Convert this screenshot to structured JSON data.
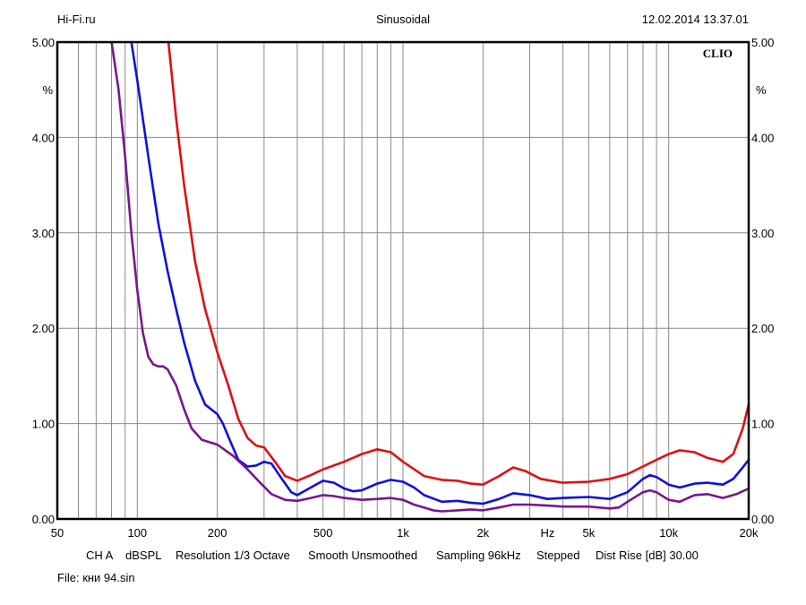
{
  "header": {
    "left": "Hi-Fi.ru",
    "center": "Sinusoidal",
    "right": "12.02.2014 13.37.01"
  },
  "footer": {
    "channel": "CH A",
    "units": "dBSPL",
    "resolution": "Resolution 1/3 Octave",
    "smooth": "Smooth Unsmoothed",
    "sampling": "Sampling 96kHz",
    "stepped": "Stepped",
    "dist_rise": "Dist Rise [dB] 30.00"
  },
  "file": {
    "label": "File:",
    "name": "кни 94.sin"
  },
  "chart_data": {
    "type": "line",
    "brand": "CLIO",
    "x_scale": "log",
    "xlim": [
      50,
      20000
    ],
    "ylim": [
      0,
      5
    ],
    "grid": true,
    "y_unit": "%",
    "y_ticks": [
      "0.00",
      "1.00",
      "2.00",
      "3.00",
      "4.00",
      "5.00"
    ],
    "x_ticks": [
      {
        "value": 50,
        "label": "50"
      },
      {
        "value": 100,
        "label": "100"
      },
      {
        "value": 200,
        "label": "200"
      },
      {
        "value": 500,
        "label": "500"
      },
      {
        "value": 1000,
        "label": "1k"
      },
      {
        "value": 2000,
        "label": "2k"
      },
      {
        "value": 5000,
        "label": "5k"
      },
      {
        "value": 10000,
        "label": "10k"
      },
      {
        "value": 20000,
        "label": "20k"
      }
    ],
    "x_unit_label": "Hz",
    "series": [
      {
        "color": "#e01010",
        "points": [
          [
            131,
            5.0
          ],
          [
            140,
            4.2
          ],
          [
            150,
            3.5
          ],
          [
            165,
            2.7
          ],
          [
            180,
            2.2
          ],
          [
            200,
            1.75
          ],
          [
            220,
            1.4
          ],
          [
            240,
            1.05
          ],
          [
            260,
            0.85
          ],
          [
            280,
            0.77
          ],
          [
            300,
            0.75
          ],
          [
            330,
            0.6
          ],
          [
            360,
            0.45
          ],
          [
            400,
            0.4
          ],
          [
            450,
            0.46
          ],
          [
            500,
            0.52
          ],
          [
            600,
            0.6
          ],
          [
            700,
            0.68
          ],
          [
            800,
            0.73
          ],
          [
            900,
            0.7
          ],
          [
            1000,
            0.6
          ],
          [
            1200,
            0.45
          ],
          [
            1400,
            0.41
          ],
          [
            1600,
            0.4
          ],
          [
            1800,
            0.37
          ],
          [
            2000,
            0.36
          ],
          [
            2300,
            0.45
          ],
          [
            2600,
            0.54
          ],
          [
            2900,
            0.5
          ],
          [
            3300,
            0.42
          ],
          [
            4000,
            0.38
          ],
          [
            5000,
            0.39
          ],
          [
            6000,
            0.42
          ],
          [
            7000,
            0.47
          ],
          [
            8000,
            0.55
          ],
          [
            9000,
            0.62
          ],
          [
            10000,
            0.68
          ],
          [
            11000,
            0.72
          ],
          [
            12500,
            0.7
          ],
          [
            14000,
            0.64
          ],
          [
            16000,
            0.6
          ],
          [
            17500,
            0.68
          ],
          [
            19000,
            0.95
          ],
          [
            20000,
            1.2
          ]
        ]
      },
      {
        "color": "#1010e0",
        "points": [
          [
            95,
            5.0
          ],
          [
            100,
            4.6
          ],
          [
            110,
            3.8
          ],
          [
            120,
            3.1
          ],
          [
            130,
            2.6
          ],
          [
            140,
            2.2
          ],
          [
            150,
            1.85
          ],
          [
            165,
            1.45
          ],
          [
            180,
            1.2
          ],
          [
            200,
            1.1
          ],
          [
            210,
            1.0
          ],
          [
            225,
            0.8
          ],
          [
            240,
            0.62
          ],
          [
            260,
            0.55
          ],
          [
            280,
            0.56
          ],
          [
            300,
            0.6
          ],
          [
            320,
            0.58
          ],
          [
            350,
            0.42
          ],
          [
            380,
            0.28
          ],
          [
            400,
            0.25
          ],
          [
            450,
            0.33
          ],
          [
            500,
            0.4
          ],
          [
            550,
            0.38
          ],
          [
            600,
            0.32
          ],
          [
            650,
            0.29
          ],
          [
            700,
            0.3
          ],
          [
            800,
            0.37
          ],
          [
            900,
            0.41
          ],
          [
            1000,
            0.39
          ],
          [
            1100,
            0.33
          ],
          [
            1200,
            0.25
          ],
          [
            1400,
            0.18
          ],
          [
            1600,
            0.19
          ],
          [
            1800,
            0.17
          ],
          [
            2000,
            0.16
          ],
          [
            2300,
            0.21
          ],
          [
            2600,
            0.27
          ],
          [
            3000,
            0.25
          ],
          [
            3500,
            0.21
          ],
          [
            4000,
            0.22
          ],
          [
            5000,
            0.23
          ],
          [
            6000,
            0.21
          ],
          [
            7000,
            0.28
          ],
          [
            8000,
            0.42
          ],
          [
            8500,
            0.46
          ],
          [
            9000,
            0.44
          ],
          [
            10000,
            0.36
          ],
          [
            11000,
            0.33
          ],
          [
            12500,
            0.37
          ],
          [
            14000,
            0.38
          ],
          [
            16000,
            0.36
          ],
          [
            17500,
            0.42
          ],
          [
            19000,
            0.54
          ],
          [
            20000,
            0.62
          ]
        ]
      },
      {
        "color": "#7a1590",
        "points": [
          [
            80,
            5.0
          ],
          [
            85,
            4.5
          ],
          [
            90,
            3.8
          ],
          [
            95,
            3.0
          ],
          [
            100,
            2.4
          ],
          [
            105,
            1.95
          ],
          [
            110,
            1.7
          ],
          [
            115,
            1.62
          ],
          [
            120,
            1.6
          ],
          [
            125,
            1.6
          ],
          [
            130,
            1.57
          ],
          [
            140,
            1.4
          ],
          [
            150,
            1.15
          ],
          [
            160,
            0.95
          ],
          [
            175,
            0.83
          ],
          [
            200,
            0.78
          ],
          [
            230,
            0.66
          ],
          [
            260,
            0.52
          ],
          [
            290,
            0.38
          ],
          [
            320,
            0.26
          ],
          [
            360,
            0.2
          ],
          [
            400,
            0.19
          ],
          [
            450,
            0.22
          ],
          [
            500,
            0.25
          ],
          [
            550,
            0.24
          ],
          [
            600,
            0.22
          ],
          [
            700,
            0.2
          ],
          [
            800,
            0.21
          ],
          [
            900,
            0.22
          ],
          [
            1000,
            0.2
          ],
          [
            1100,
            0.15
          ],
          [
            1200,
            0.12
          ],
          [
            1300,
            0.09
          ],
          [
            1400,
            0.08
          ],
          [
            1600,
            0.09
          ],
          [
            1800,
            0.1
          ],
          [
            2000,
            0.09
          ],
          [
            2300,
            0.12
          ],
          [
            2600,
            0.15
          ],
          [
            3000,
            0.15
          ],
          [
            3500,
            0.14
          ],
          [
            4000,
            0.13
          ],
          [
            5000,
            0.13
          ],
          [
            6000,
            0.11
          ],
          [
            6500,
            0.12
          ],
          [
            7000,
            0.18
          ],
          [
            8000,
            0.28
          ],
          [
            8500,
            0.3
          ],
          [
            9000,
            0.28
          ],
          [
            10000,
            0.2
          ],
          [
            11000,
            0.18
          ],
          [
            12500,
            0.25
          ],
          [
            14000,
            0.26
          ],
          [
            16000,
            0.22
          ],
          [
            18000,
            0.26
          ],
          [
            20000,
            0.32
          ]
        ]
      }
    ]
  }
}
